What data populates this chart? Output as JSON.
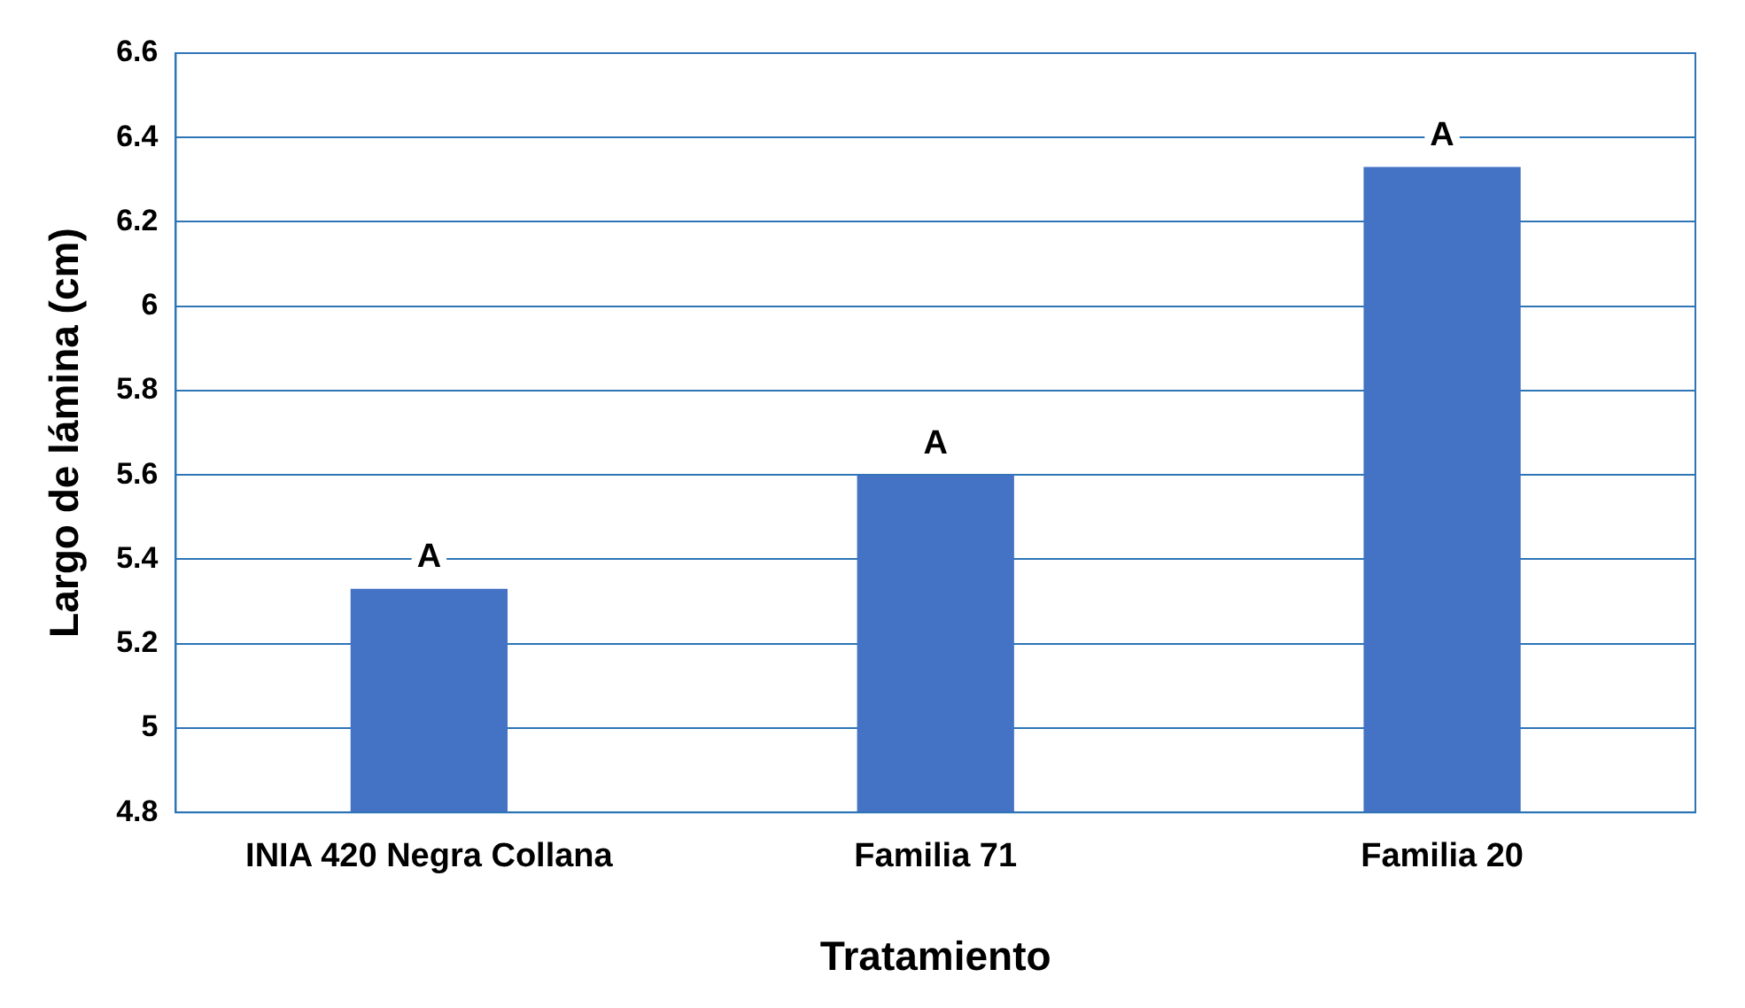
{
  "chart_data": {
    "type": "bar",
    "xlabel": "Tratamiento",
    "ylabel": "Largo de lámina (cm)",
    "categories": [
      "INIA 420 Negra Collana",
      "Familia 71",
      "Familia 20"
    ],
    "values": [
      5.33,
      5.6,
      6.33
    ],
    "color": "#4472c4",
    "ylim": [
      4.8,
      6.6
    ],
    "yticks": [
      4.8,
      5,
      5.2,
      5.4,
      5.6,
      5.8,
      6,
      6.2,
      6.4,
      6.6
    ],
    "grid": "y",
    "annotations": [
      {
        "text": "A",
        "x": "INIA 420 Negra Collana",
        "y": 5.33
      },
      {
        "text": "A",
        "x": "Familia 71",
        "y": 5.6
      },
      {
        "text": "A",
        "x": "Familia 20",
        "y": 6.33
      }
    ]
  }
}
